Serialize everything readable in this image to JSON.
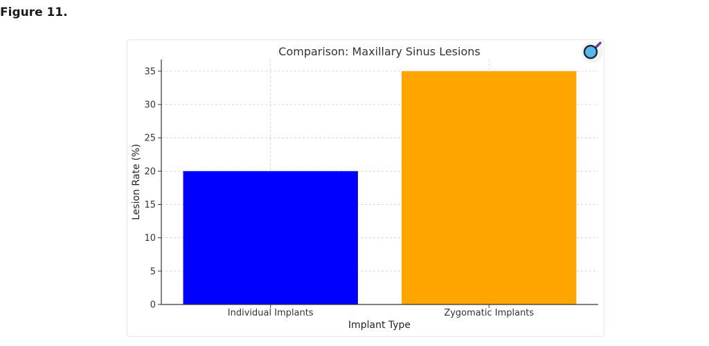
{
  "figure": {
    "label": "Figure 11."
  },
  "chart_data": {
    "type": "bar",
    "title": "Comparison: Maxillary Sinus Lesions",
    "xlabel": "Implant Type",
    "ylabel": "Lesion Rate (%)",
    "categories": [
      "Individual Implants",
      "Zygomatic Implants"
    ],
    "values": [
      20,
      35
    ],
    "colors": [
      "#0000ff",
      "#ffa500"
    ],
    "ylim": [
      0,
      36.75
    ],
    "yticks": [
      0,
      5,
      10,
      15,
      20,
      25,
      30,
      35
    ],
    "grid": true,
    "grid_style": "dashed"
  },
  "icons": {
    "magnifier": "magnifier-icon"
  }
}
